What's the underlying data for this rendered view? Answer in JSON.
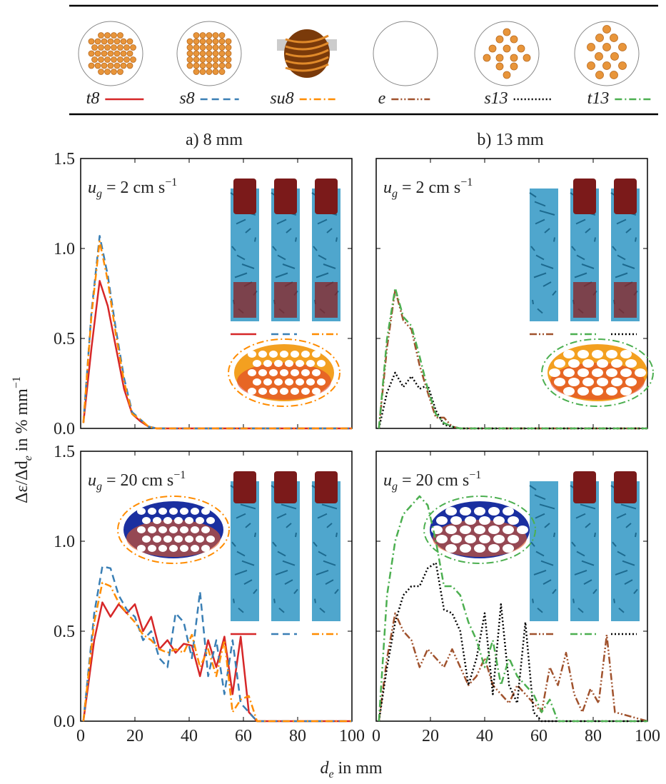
{
  "columns": [
    "a) 8 mm",
    "b) 13 mm"
  ],
  "x_label": {
    "var": "d",
    "sub": "e",
    "text": " in mm"
  },
  "y_label": {
    "text": "Δε/Δd",
    "sub": "e",
    "unit": " in % mm",
    "sup": "−1"
  },
  "chart_data": [
    {
      "type": "line",
      "annotation": {
        "var": "u",
        "sub": "g",
        "text": " = 2 cm s",
        "sup": "−1"
      },
      "x": [
        1,
        4,
        7,
        10,
        13,
        16,
        19,
        22,
        25,
        28,
        100
      ],
      "series": [
        {
          "name": "t8",
          "color": "#d62728",
          "values": [
            0.03,
            0.45,
            0.82,
            0.68,
            0.45,
            0.22,
            0.08,
            0.04,
            0.01,
            0,
            0
          ]
        },
        {
          "name": "s8",
          "color": "#3a7fb5",
          "dash": "10 6",
          "values": [
            0.03,
            0.65,
            1.07,
            0.85,
            0.55,
            0.28,
            0.09,
            0.05,
            0.01,
            0,
            0
          ]
        },
        {
          "name": "su8",
          "color": "#ff8c00",
          "dash": "10 4 2 4",
          "values": [
            0.03,
            0.63,
            1.04,
            0.82,
            0.52,
            0.26,
            0.08,
            0.05,
            0.01,
            0,
            0
          ]
        }
      ],
      "xlim": [
        0,
        100
      ],
      "ylim": [
        0,
        1.5
      ],
      "yticks": [
        {
          "value": 0,
          "label": "0.0"
        },
        {
          "value": 0.5,
          "label": "0.5"
        },
        {
          "value": 1,
          "label": "1.0"
        },
        {
          "value": 1.5,
          "label": "1.5"
        }
      ]
    },
    {
      "type": "line",
      "annotation": {
        "var": "u",
        "sub": "g",
        "text": " = 2 cm s",
        "sup": "−1"
      },
      "x": [
        1,
        4,
        7,
        10,
        13,
        16,
        19,
        22,
        25,
        28,
        31,
        100
      ],
      "series": [
        {
          "name": "e",
          "color": "#a0522d",
          "dash": "10 3 2 3 2 3",
          "values": [
            0,
            0.45,
            0.77,
            0.6,
            0.55,
            0.35,
            0.2,
            0.06,
            0.06,
            0.01,
            0,
            0
          ]
        },
        {
          "name": "s13",
          "color": "#000000",
          "dash": "2 3",
          "values": [
            0,
            0.2,
            0.31,
            0.23,
            0.29,
            0.22,
            0.24,
            0.1,
            0.02,
            0.01,
            0,
            0
          ]
        },
        {
          "name": "t13",
          "color": "#4caf50",
          "dash": "10 4 2 4",
          "values": [
            0,
            0.5,
            0.78,
            0.62,
            0.57,
            0.4,
            0.22,
            0.08,
            0.03,
            0.01,
            0,
            0
          ]
        }
      ],
      "xlim": [
        0,
        100
      ],
      "ylim": [
        0,
        1.5
      ]
    },
    {
      "type": "line",
      "annotation": {
        "var": "u",
        "sub": "g",
        "text": " = 20 cm s",
        "sup": "−1"
      },
      "x": [
        1,
        5,
        8,
        11,
        14,
        17,
        20,
        23,
        26,
        29,
        32,
        35,
        38,
        41,
        44,
        47,
        50,
        53,
        56,
        59,
        62,
        65,
        100
      ],
      "series": [
        {
          "name": "t8",
          "color": "#d62728",
          "values": [
            0,
            0.45,
            0.66,
            0.58,
            0.65,
            0.6,
            0.65,
            0.5,
            0.58,
            0.4,
            0.45,
            0.38,
            0.43,
            0.42,
            0.25,
            0.45,
            0.3,
            0.47,
            0.15,
            0.47,
            0.05,
            0,
            0
          ]
        },
        {
          "name": "s8",
          "color": "#3a7fb5",
          "dash": "10 6",
          "values": [
            0,
            0.6,
            0.86,
            0.85,
            0.7,
            0.62,
            0.58,
            0.45,
            0.5,
            0.35,
            0.3,
            0.6,
            0.55,
            0.35,
            0.72,
            0.25,
            0.45,
            0.15,
            0.45,
            0.1,
            0.05,
            0,
            0
          ]
        },
        {
          "name": "su8",
          "color": "#ff8c00",
          "dash": "10 4 2 4",
          "values": [
            0,
            0.55,
            0.77,
            0.75,
            0.66,
            0.6,
            0.55,
            0.48,
            0.45,
            0.4,
            0.38,
            0.4,
            0.38,
            0.48,
            0.3,
            0.4,
            0.25,
            0.45,
            0.05,
            0.12,
            0.14,
            0,
            0
          ]
        }
      ],
      "xlim": [
        0,
        100
      ],
      "ylim": [
        0,
        1.5
      ],
      "xticks": [
        0,
        20,
        40,
        60,
        80,
        100
      ],
      "yticks": [
        {
          "value": 0,
          "label": "0.0"
        },
        {
          "value": 0.5,
          "label": "0.5"
        },
        {
          "value": 1,
          "label": "1.0"
        },
        {
          "value": 1.5,
          "label": "1.5"
        }
      ]
    },
    {
      "type": "line",
      "annotation": {
        "var": "u",
        "sub": "g",
        "text": " = 20 cm s",
        "sup": "−1"
      },
      "x": [
        1,
        4,
        7,
        10,
        13,
        16,
        19,
        22,
        25,
        28,
        31,
        34,
        37,
        40,
        43,
        46,
        49,
        52,
        55,
        58,
        61,
        64,
        67,
        70,
        73,
        76,
        79,
        82,
        85,
        88,
        100
      ],
      "series": [
        {
          "name": "e",
          "color": "#a0522d",
          "dash": "10 3 2 3 2 3",
          "values": [
            0,
            0.35,
            0.6,
            0.5,
            0.45,
            0.3,
            0.4,
            0.35,
            0.3,
            0.4,
            0.3,
            0.2,
            0.25,
            0.35,
            0.2,
            0.15,
            0.1,
            0.2,
            0.15,
            0.1,
            0.05,
            0.3,
            0.2,
            0.38,
            0.15,
            0.05,
            0.18,
            0.1,
            0.48,
            0.05,
            0
          ]
        },
        {
          "name": "s13",
          "color": "#000000",
          "dash": "2 3",
          "values": [
            0,
            0.3,
            0.55,
            0.7,
            0.75,
            0.75,
            0.85,
            0.88,
            0.62,
            0.6,
            0.5,
            0.2,
            0.35,
            0.6,
            0.15,
            0.65,
            0.2,
            0.1,
            0.55,
            0.05,
            0,
            0,
            0,
            0,
            0,
            0,
            0,
            0,
            0,
            0,
            0
          ]
        },
        {
          "name": "t13",
          "color": "#4caf50",
          "dash": "10 4 2 4",
          "values": [
            0,
            0.7,
            1.0,
            1.15,
            1.2,
            1.25,
            1.2,
            1.0,
            0.75,
            0.75,
            0.7,
            0.55,
            0.45,
            0.3,
            0.45,
            0.2,
            0.35,
            0.25,
            0.2,
            0.15,
            0.05,
            0.12,
            0,
            0,
            0,
            0,
            0,
            0,
            0,
            0,
            0
          ]
        }
      ],
      "xlim": [
        0,
        100
      ],
      "ylim": [
        0,
        1.5
      ],
      "xticks": [
        0,
        20,
        40,
        60,
        80,
        100
      ]
    }
  ]
}
